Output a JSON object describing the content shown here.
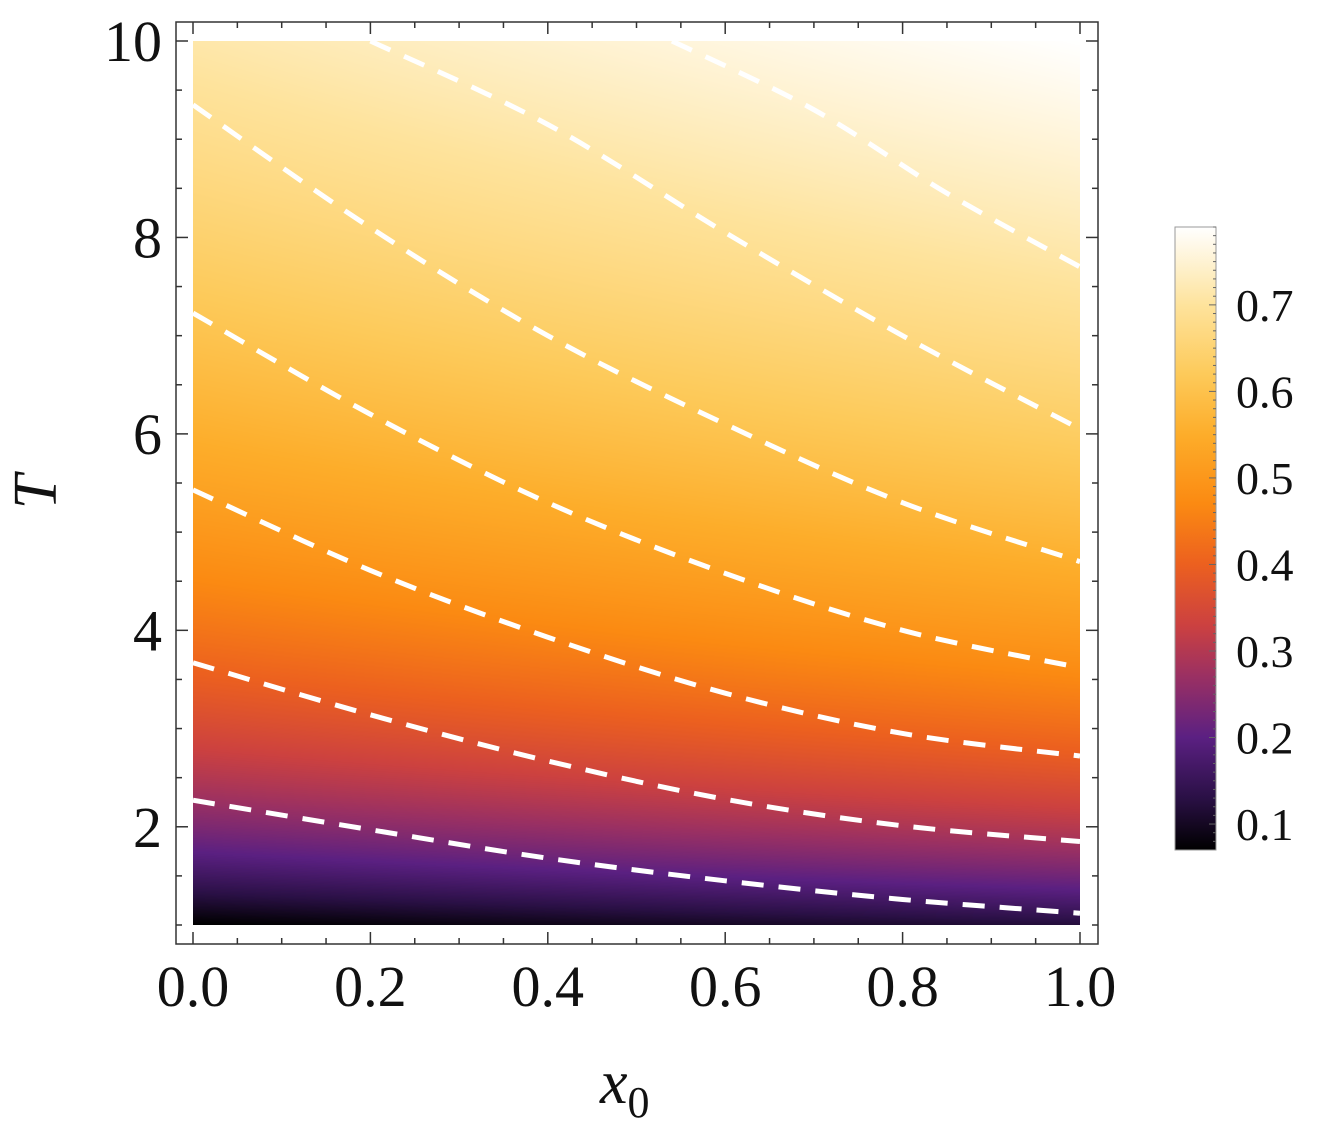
{
  "chart_data": {
    "type": "heatmap",
    "title": "",
    "xlabel": "x",
    "xlabel_subscript": "0",
    "ylabel": "T",
    "xlim": [
      0.0,
      1.0
    ],
    "ylim": [
      1.0,
      10.0
    ],
    "x_ticks": [
      "0.0",
      "0.2",
      "0.4",
      "0.6",
      "0.8",
      "1.0"
    ],
    "y_ticks": [
      "2",
      "4",
      "6",
      "8",
      "10"
    ],
    "colorbar": {
      "range": [
        0.07,
        0.79
      ],
      "ticks": [
        "0.1",
        "0.2",
        "0.3",
        "0.4",
        "0.5",
        "0.6",
        "0.7"
      ],
      "colormap": "inferno-like",
      "stops": [
        {
          "value": 0.07,
          "color": "#000000"
        },
        {
          "value": 0.13,
          "color": "#2a1045"
        },
        {
          "value": 0.2,
          "color": "#5b2082"
        },
        {
          "value": 0.27,
          "color": "#9a3063"
        },
        {
          "value": 0.33,
          "color": "#cc4140"
        },
        {
          "value": 0.4,
          "color": "#ec601f"
        },
        {
          "value": 0.47,
          "color": "#fb8a12"
        },
        {
          "value": 0.55,
          "color": "#fdad2a"
        },
        {
          "value": 0.62,
          "color": "#fdca5a"
        },
        {
          "value": 0.7,
          "color": "#fee39c"
        },
        {
          "value": 0.79,
          "color": "#ffffff"
        }
      ]
    },
    "contour_style": "white dashed",
    "contours": [
      {
        "points": [
          [
            0.0,
            2.27
          ],
          [
            0.2,
            1.97
          ],
          [
            0.4,
            1.68
          ],
          [
            0.6,
            1.45
          ],
          [
            0.8,
            1.26
          ],
          [
            1.0,
            1.12
          ]
        ]
      },
      {
        "points": [
          [
            0.0,
            3.67
          ],
          [
            0.2,
            3.14
          ],
          [
            0.4,
            2.67
          ],
          [
            0.6,
            2.28
          ],
          [
            0.8,
            2.01
          ],
          [
            1.0,
            1.85
          ]
        ]
      },
      {
        "points": [
          [
            0.0,
            5.43
          ],
          [
            0.2,
            4.61
          ],
          [
            0.4,
            3.93
          ],
          [
            0.6,
            3.36
          ],
          [
            0.8,
            2.95
          ],
          [
            1.0,
            2.72
          ]
        ]
      },
      {
        "points": [
          [
            0.0,
            7.23
          ],
          [
            0.2,
            6.2
          ],
          [
            0.4,
            5.3
          ],
          [
            0.6,
            4.58
          ],
          [
            0.8,
            4.0
          ],
          [
            1.0,
            3.62
          ]
        ]
      },
      {
        "points": [
          [
            0.0,
            9.35
          ],
          [
            0.2,
            8.1
          ],
          [
            0.4,
            7.0
          ],
          [
            0.6,
            6.1
          ],
          [
            0.8,
            5.3
          ],
          [
            1.0,
            4.7
          ]
        ]
      },
      {
        "points": [
          [
            0.2,
            10.0
          ],
          [
            0.4,
            9.15
          ],
          [
            0.6,
            8.05
          ],
          [
            0.8,
            7.0
          ],
          [
            1.0,
            6.05
          ]
        ]
      },
      {
        "points": [
          [
            0.54,
            10.0
          ],
          [
            0.7,
            9.3
          ],
          [
            0.85,
            8.45
          ],
          [
            1.0,
            7.7
          ]
        ]
      }
    ]
  }
}
